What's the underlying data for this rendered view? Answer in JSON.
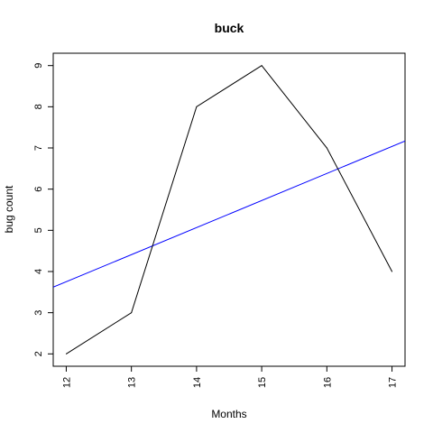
{
  "chart_data": {
    "type": "line",
    "title": "buck",
    "xlabel": "Months",
    "ylabel": "bug count",
    "x": [
      12,
      13,
      14,
      15,
      16,
      17
    ],
    "xlim": [
      11.8,
      17.2
    ],
    "ylim": [
      1.7,
      9.3
    ],
    "xticks": [
      "12",
      "13",
      "14",
      "15",
      "16",
      "17"
    ],
    "yticks": [
      "2",
      "3",
      "4",
      "5",
      "6",
      "7",
      "8",
      "9"
    ],
    "grid": false,
    "series": [
      {
        "values": [
          2,
          3,
          8,
          9,
          7,
          4
        ],
        "color": "#000000"
      }
    ],
    "reference_lines": [
      {
        "type": "linear-fit",
        "color": "#0000ff",
        "intercept": -4.133,
        "slope": 0.6571
      }
    ]
  }
}
